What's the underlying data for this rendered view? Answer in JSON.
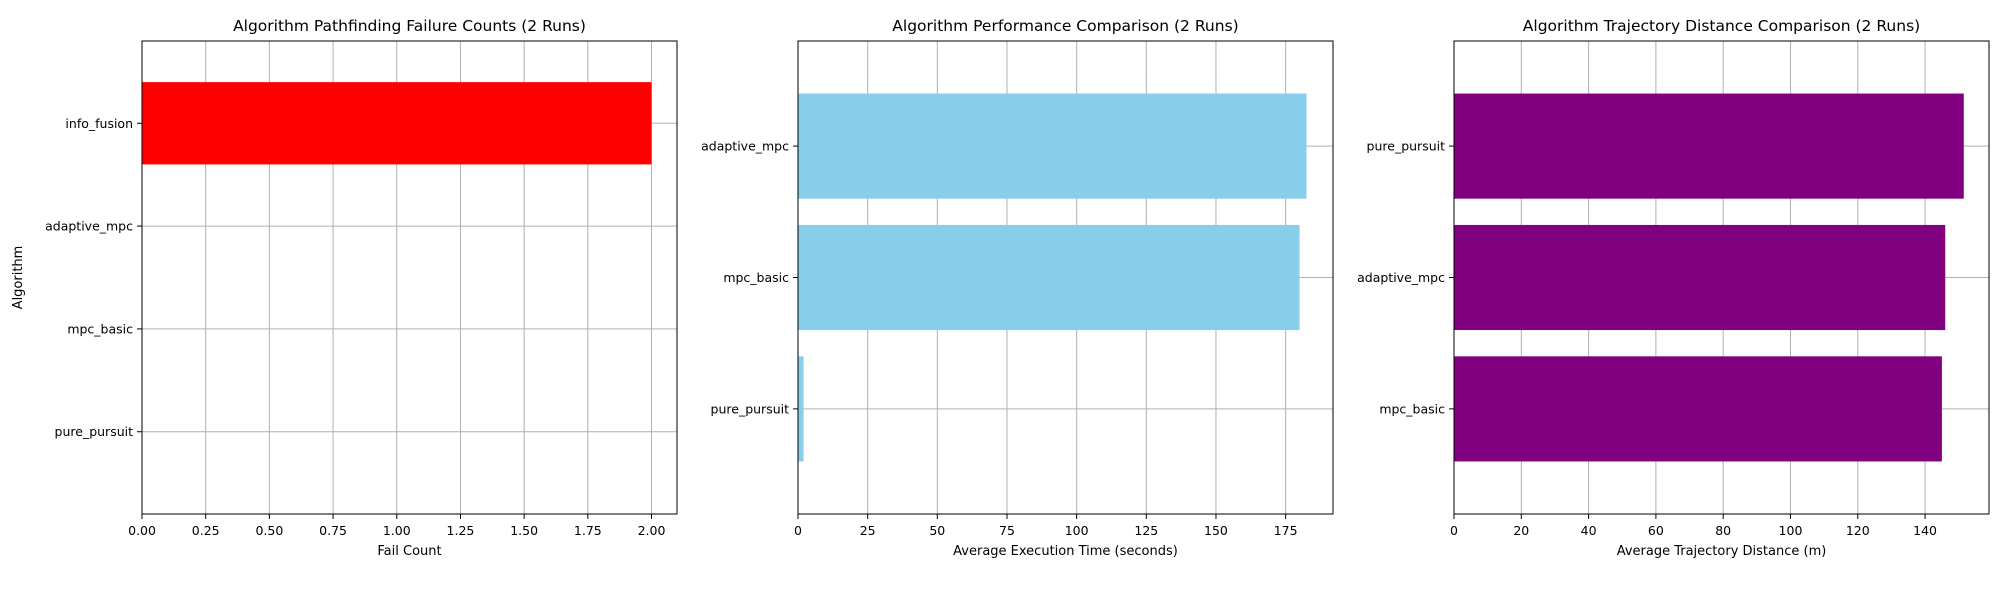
{
  "chart_data": [
    {
      "type": "bar",
      "orientation": "horizontal",
      "title": "Algorithm Pathfinding Failure Counts (2 Runs)",
      "xlabel": "Fail Count",
      "ylabel": "Algorithm",
      "categories": [
        "pure_pursuit",
        "mpc_basic",
        "adaptive_mpc",
        "info_fusion"
      ],
      "values": [
        0,
        0,
        0,
        2
      ],
      "xlim": [
        0,
        2.1
      ],
      "xticks": [
        0,
        0.25,
        0.5,
        0.75,
        1.0,
        1.25,
        1.5,
        1.75,
        2.0
      ],
      "xtick_labels": [
        "0.00",
        "0.25",
        "0.50",
        "0.75",
        "1.00",
        "1.25",
        "1.50",
        "1.75",
        "2.00"
      ],
      "color": "#ff0000",
      "grid": true
    },
    {
      "type": "bar",
      "orientation": "horizontal",
      "title": "Algorithm Performance Comparison (2 Runs)",
      "xlabel": "Average Execution Time (seconds)",
      "ylabel": "",
      "categories": [
        "pure_pursuit",
        "mpc_basic",
        "adaptive_mpc"
      ],
      "values": [
        2,
        180,
        182.5
      ],
      "xlim": [
        0,
        192
      ],
      "xticks": [
        0,
        25,
        50,
        75,
        100,
        125,
        150,
        175
      ],
      "xtick_labels": [
        "0",
        "25",
        "50",
        "75",
        "100",
        "125",
        "150",
        "175"
      ],
      "color": "#87ceeb",
      "grid": true
    },
    {
      "type": "bar",
      "orientation": "horizontal",
      "title": "Algorithm Trajectory Distance Comparison (2 Runs)",
      "xlabel": "Average Trajectory Distance (m)",
      "ylabel": "",
      "categories": [
        "mpc_basic",
        "adaptive_mpc",
        "pure_pursuit"
      ],
      "values": [
        145,
        146,
        151.5
      ],
      "xlim": [
        0,
        159
      ],
      "xticks": [
        0,
        20,
        40,
        60,
        80,
        100,
        120,
        140
      ],
      "xtick_labels": [
        "0",
        "20",
        "40",
        "60",
        "80",
        "100",
        "120",
        "140"
      ],
      "color": "#800080",
      "grid": true
    }
  ]
}
